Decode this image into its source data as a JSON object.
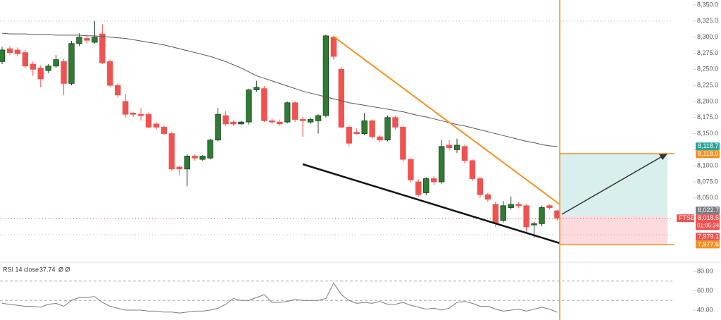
{
  "chart_data": [
    {
      "type": "candlestick",
      "open": [
        8262,
        8282,
        8280,
        8276,
        8258,
        8252,
        8248,
        8255,
        8262,
        8228,
        8290,
        8298,
        8292,
        8305,
        8262,
        8225,
        8200,
        8182,
        8180,
        8180,
        8165,
        8160,
        8150,
        8098,
        8095,
        8115,
        8110,
        8112,
        8140,
        8178,
        8168,
        8165,
        8168,
        8218,
        8220,
        8170,
        8168,
        8168,
        8198,
        8172,
        8168,
        8170,
        8178,
        8300,
        8250,
        8160,
        8152,
        8150,
        8170,
        8145,
        8140,
        8175,
        8160,
        8110,
        8075,
        8058,
        8080,
        8075,
        8132,
        8125,
        8130,
        8108,
        8080,
        8055,
        8040,
        8015,
        8035,
        8040,
        8038,
        8008,
        8010,
        8038,
        8030
      ],
      "high": [
        8285,
        8286,
        8284,
        8280,
        8262,
        8256,
        8258,
        8272,
        8266,
        8294,
        8306,
        8304,
        8325,
        8320,
        8265,
        8228,
        8212,
        8184,
        8190,
        8183,
        8168,
        8163,
        8153,
        8100,
        8118,
        8118,
        8117,
        8142,
        8190,
        8185,
        8170,
        8170,
        8220,
        8232,
        8224,
        8174,
        8172,
        8200,
        8200,
        8176,
        8175,
        8180,
        8304,
        8302,
        8253,
        8163,
        8158,
        8182,
        8172,
        8148,
        8178,
        8178,
        8163,
        8112,
        8079,
        8082,
        8084,
        8140,
        8140,
        8142,
        8133,
        8110,
        8083,
        8058,
        8044,
        8045,
        8052,
        8044,
        8040,
        8013,
        8038,
        8040,
        8032
      ],
      "low": [
        8258,
        8272,
        8270,
        8252,
        8240,
        8222,
        8244,
        8252,
        8210,
        8225,
        8286,
        8290,
        8290,
        8258,
        8222,
        8206,
        8175,
        8176,
        8170,
        8158,
        8156,
        8148,
        8092,
        8085,
        8068,
        8108,
        8108,
        8110,
        8138,
        8162,
        8162,
        8164,
        8164,
        8215,
        8168,
        8165,
        8162,
        8166,
        8168,
        8145,
        8165,
        8150,
        8175,
        8265,
        8158,
        8130,
        8148,
        8148,
        8142,
        8136,
        8138,
        8156,
        8106,
        8074,
        8052,
        8054,
        8070,
        8072,
        8124,
        8120,
        8104,
        8076,
        8050,
        8044,
        8005,
        8012,
        8032,
        8034,
        7995,
        7988,
        8006,
        8032,
        8015
      ],
      "close": [
        8280,
        8276,
        8274,
        8255,
        8250,
        8235,
        8255,
        8265,
        8228,
        8290,
        8300,
        8295,
        8300,
        8260,
        8225,
        8210,
        8180,
        8180,
        8178,
        8160,
        8160,
        8150,
        8095,
        8095,
        8115,
        8112,
        8115,
        8140,
        8180,
        8165,
        8165,
        8168,
        8218,
        8222,
        8170,
        8168,
        8165,
        8198,
        8172,
        8170,
        8172,
        8178,
        8302,
        8270,
        8160,
        8135,
        8150,
        8170,
        8145,
        8140,
        8175,
        8160,
        8110,
        8078,
        8055,
        8080,
        8075,
        8130,
        8128,
        8132,
        8108,
        8080,
        8055,
        8048,
        8010,
        8038,
        8040,
        8038,
        8005,
        8010,
        8035,
        8035,
        8018.5
      ],
      "up_color": "#2e7d32",
      "down_color": "#ef5350",
      "series": [
        {
          "color": "#555555",
          "values": [
            8306,
            8305,
            8305,
            8305,
            8304,
            8304,
            8304,
            8303,
            8303,
            8303,
            8303,
            8302,
            8302,
            8301,
            8300,
            8299,
            8298,
            8296,
            8294,
            8292,
            8290,
            8288,
            8285,
            8282,
            8279,
            8276,
            8273,
            8270,
            8266,
            8262,
            8257,
            8252,
            8246,
            8240,
            8236,
            8232,
            8228,
            8224,
            8220,
            8216,
            8213,
            8210,
            8207,
            8204,
            8201,
            8198,
            8196,
            8194,
            8192,
            8190,
            8188,
            8186,
            8184,
            8181,
            8178,
            8176,
            8173,
            8170,
            8167,
            8164,
            8162,
            8159,
            8156,
            8153,
            8150,
            8147,
            8144,
            8141,
            8138,
            8136,
            8133,
            8131,
            8130
          ]
        }
      ],
      "ylim": [
        7952.3,
        8357.7
      ],
      "yticks": [
        {
          "value": 8350,
          "label": "8,350.0"
        },
        {
          "value": 8325,
          "label": "8,325.0"
        },
        {
          "value": 8300,
          "label": "8,300.0"
        },
        {
          "value": 8275,
          "label": "8,275.0"
        },
        {
          "value": 8250,
          "label": "8,250.0"
        },
        {
          "value": 8225,
          "label": "8,225.0"
        },
        {
          "value": 8200,
          "label": "8,200.0"
        },
        {
          "value": 8175,
          "label": "8,175.0"
        },
        {
          "value": 8150,
          "label": "8,150.0"
        },
        {
          "value": 8125,
          "label": "8,125.0"
        },
        {
          "value": 8100,
          "label": "8,100.0"
        },
        {
          "value": 8075,
          "label": "8,075.0"
        },
        {
          "value": 8050,
          "label": "8,050.0"
        }
      ],
      "price_tags": [
        {
          "value": 8118.7,
          "label": "8,118.7",
          "color": "#26a69a"
        },
        {
          "value": 8118.0,
          "label": "8,118.0",
          "color": "#f59120"
        },
        {
          "value": 8022.7,
          "label": "8,022.7",
          "color": "#787b86"
        },
        {
          "value": 8018.5,
          "label": "8,018.5",
          "color": "#ef5350",
          "symbol": "FTSE",
          "countdown": "01:05:34"
        },
        {
          "value": 7979.1,
          "label": "7,979.1",
          "color": "#ef5350"
        },
        {
          "value": 7977.6,
          "label": "7,977.6",
          "color": "#f59120"
        }
      ]
    },
    {
      "type": "line",
      "title": "RSI 14 close",
      "flags": "Ø Ø",
      "color": "#787b86",
      "values": [
        47,
        46,
        45,
        44,
        44,
        43,
        46,
        47,
        44,
        50,
        53,
        53,
        54,
        48,
        44,
        42,
        40,
        40,
        40,
        39,
        39,
        38,
        38,
        37,
        38,
        39,
        39,
        40,
        42,
        46,
        52,
        50,
        50,
        53,
        56,
        48,
        48,
        49,
        51,
        50,
        50,
        50,
        52,
        68,
        56,
        50,
        47,
        48,
        47,
        49,
        46,
        46,
        48,
        45,
        43,
        41,
        42,
        40,
        42,
        48,
        49,
        47,
        44,
        44,
        41,
        39,
        40,
        41,
        39,
        41,
        43,
        41,
        37.74
      ],
      "ylim": [
        29.8,
        87.3
      ],
      "yticks": [
        {
          "value": 80,
          "label": "80.00"
        },
        {
          "value": 60,
          "label": "60.00"
        },
        {
          "value": 40,
          "label": "40.00"
        }
      ],
      "bands": [
        70,
        50
      ]
    }
  ]
}
